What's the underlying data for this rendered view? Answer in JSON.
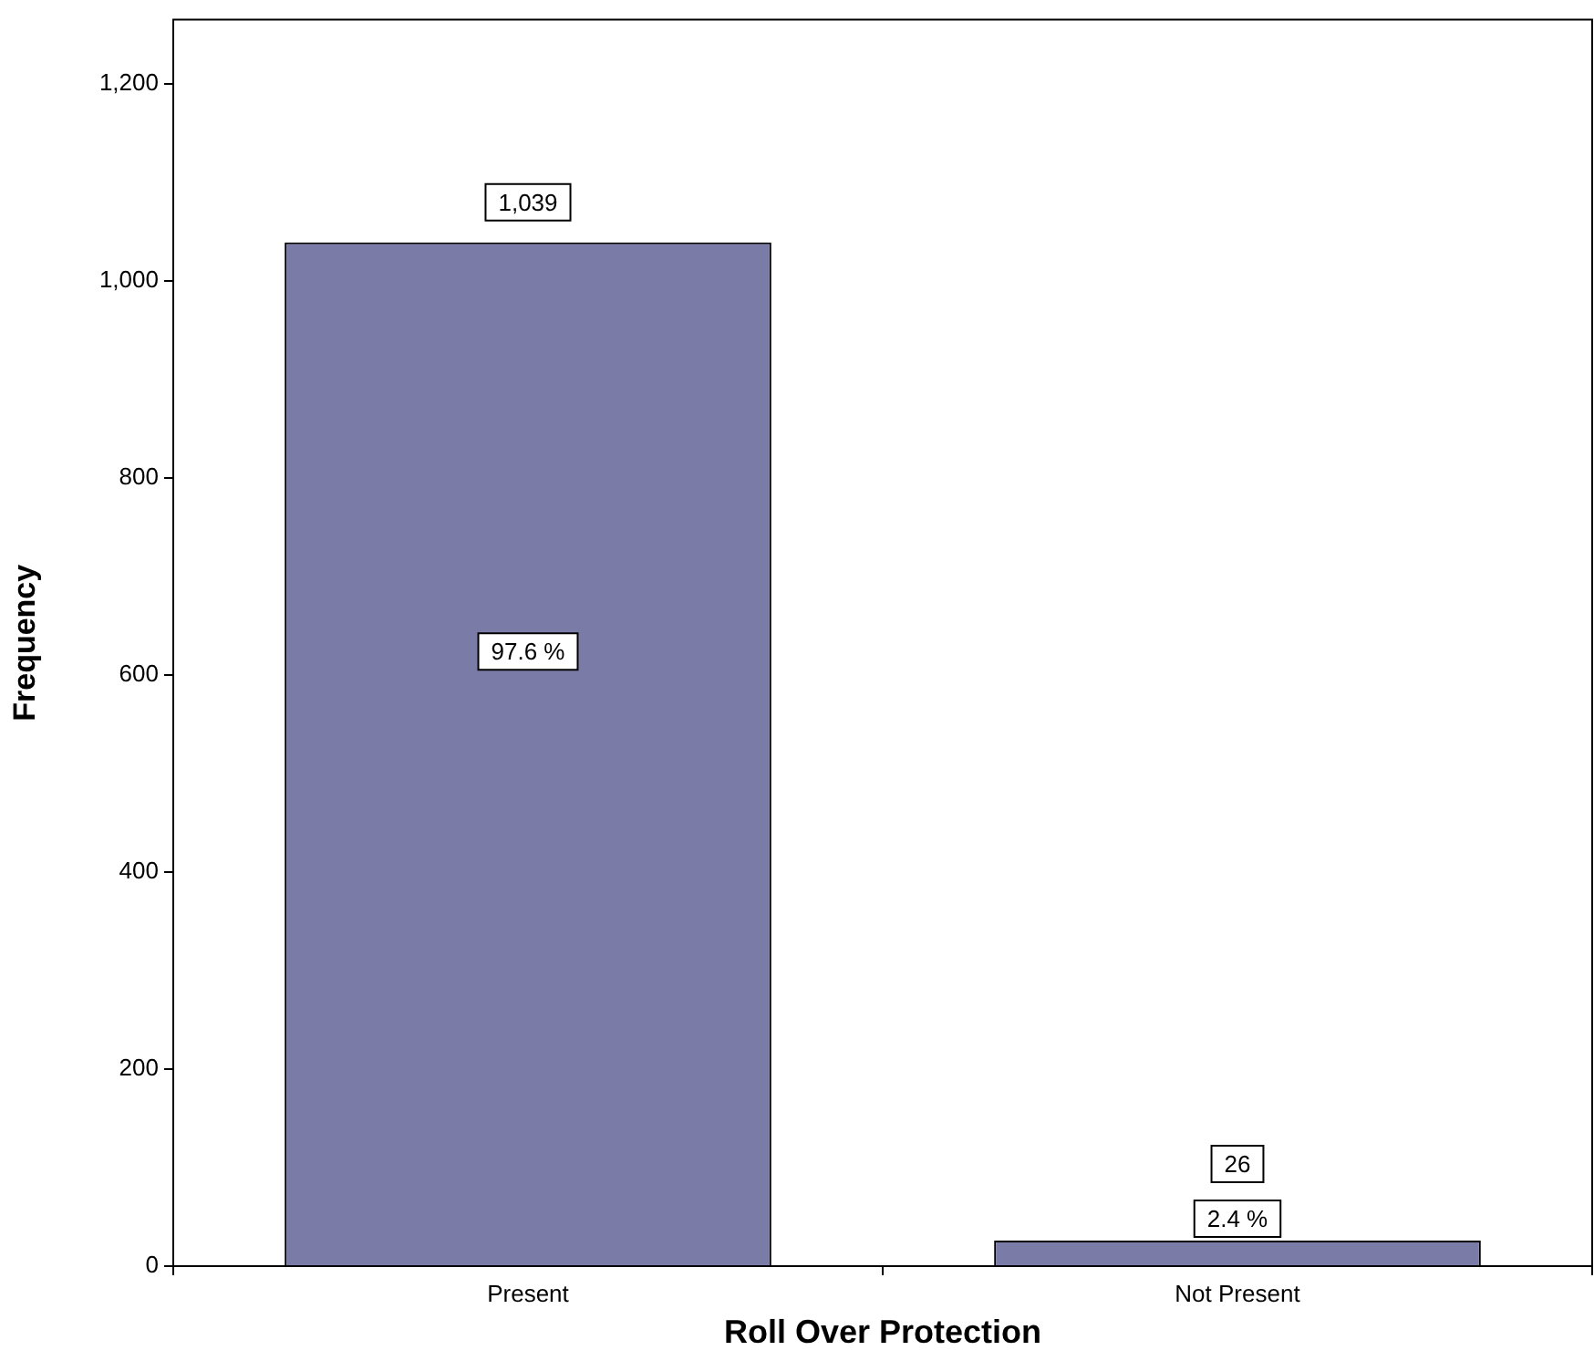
{
  "chart_data": {
    "type": "bar",
    "xlabel": "Roll Over Protection",
    "ylabel": "Frequency",
    "categories": [
      "Present",
      "Not Present"
    ],
    "values": [
      1039,
      26
    ],
    "color": "#7b7ba8",
    "ylim": [
      0,
      1265
    ],
    "yticks": [
      {
        "value": 0,
        "label": "0"
      },
      {
        "value": 200,
        "label": "200"
      },
      {
        "value": 400,
        "label": "400"
      },
      {
        "value": 600,
        "label": "600"
      },
      {
        "value": 800,
        "label": "800"
      },
      {
        "value": 1000,
        "label": "1,000"
      },
      {
        "value": 1200,
        "label": "1,200"
      }
    ],
    "value_labels": [
      "1,039",
      "26"
    ],
    "legend": false,
    "annotations": [
      "97.6 %",
      "2.4 %"
    ]
  }
}
